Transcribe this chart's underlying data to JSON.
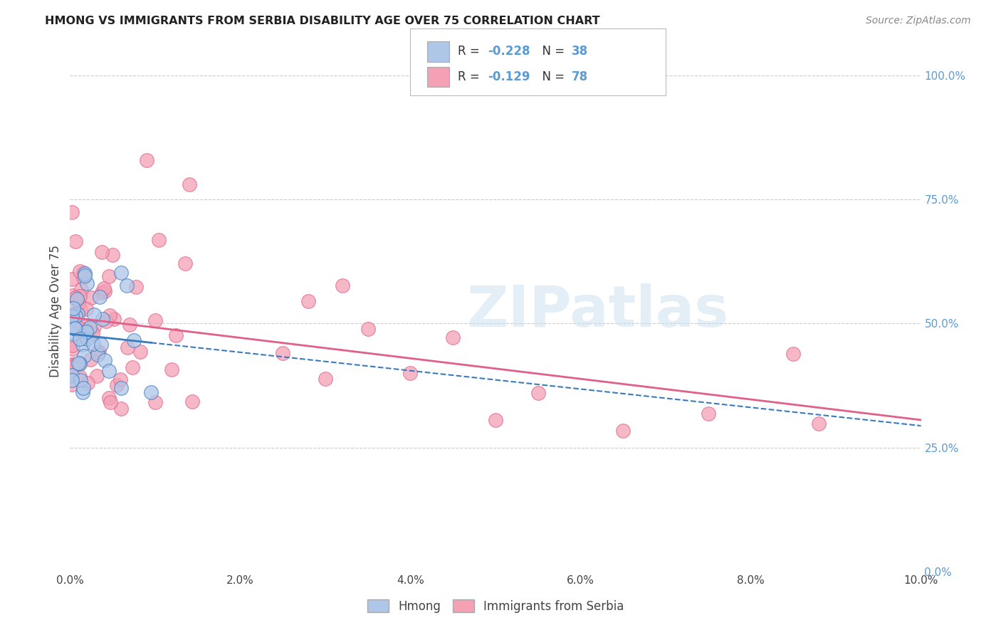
{
  "title": "HMONG VS IMMIGRANTS FROM SERBIA DISABILITY AGE OVER 75 CORRELATION CHART",
  "source": "Source: ZipAtlas.com",
  "ylabel": "Disability Age Over 75",
  "watermark": "ZIPatlas",
  "legend_label1": "Hmong",
  "legend_label2": "Immigrants from Serbia",
  "r1": -0.228,
  "n1": 38,
  "r2": -0.129,
  "n2": 78,
  "xmin": 0.0,
  "xmax": 0.1,
  "ymin": 0.0,
  "ymax": 1.05,
  "color1": "#aec6e8",
  "color2": "#f4a0b5",
  "trendline1_color": "#3a7abf",
  "trendline2_color": "#e0608a",
  "right_tick_color": "#5b9bd5",
  "legend_text_color": "#5b9bd5",
  "title_color": "#222222",
  "source_color": "#888888"
}
